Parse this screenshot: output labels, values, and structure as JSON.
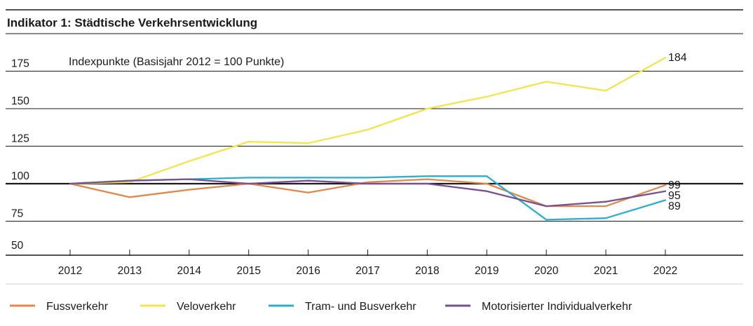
{
  "chart_data": {
    "type": "line",
    "title": "Indikator 1: Städtische Verkehrsentwicklung",
    "subtitle": "Indexpunkte (Basisjahr 2012 = 100 Punkte)",
    "x": [
      "2012",
      "2013",
      "2014",
      "2015",
      "2016",
      "2017",
      "2018",
      "2019",
      "2020",
      "2021",
      "2022"
    ],
    "ylim": [
      50,
      190
    ],
    "yticks": [
      50,
      75,
      100,
      125,
      150,
      175
    ],
    "baseline": 100,
    "grid": true,
    "legend_position": "bottom",
    "series": [
      {
        "name": "Fussverkehr",
        "color": "#e0884a",
        "values": [
          100,
          91,
          96,
          100,
          94,
          101,
          103,
          100,
          85,
          85,
          99
        ],
        "end_label": "99"
      },
      {
        "name": "Veloverkehr",
        "color": "#f2e44a",
        "values": [
          100,
          101,
          115,
          128,
          127,
          136,
          150,
          158,
          168,
          162,
          184
        ],
        "end_label": "184"
      },
      {
        "name": "Tram- und Busverkehr",
        "color": "#2aaed0",
        "values": [
          100,
          102,
          103,
          104,
          104,
          104,
          105,
          105,
          76,
          77,
          89
        ],
        "end_label": "89"
      },
      {
        "name": "Motorisierter Individualverkehr",
        "color": "#7a4f92",
        "values": [
          100,
          102,
          103,
          100,
          102,
          100,
          100,
          95,
          85,
          88,
          95
        ],
        "end_label": "95"
      }
    ]
  }
}
